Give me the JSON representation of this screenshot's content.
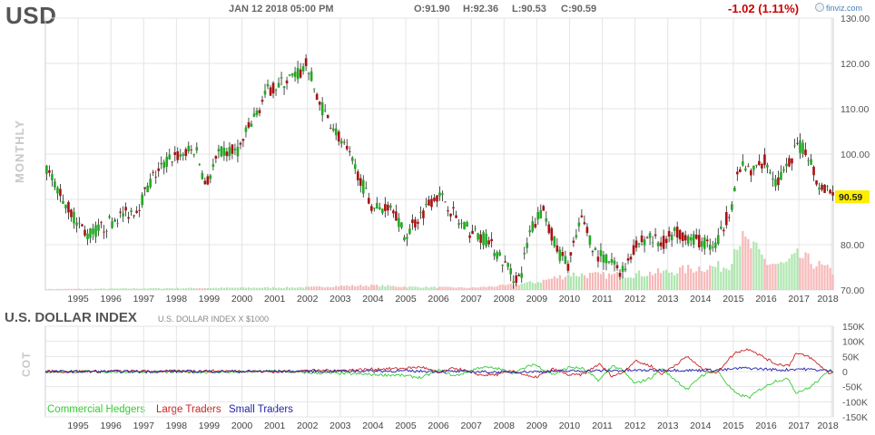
{
  "header": {
    "ticker": "USD",
    "datestamp": "JAN 12 2018 05:00 PM",
    "open": "O:91.90",
    "high": "H:92.36",
    "low": "L:90.53",
    "close": "C:90.59",
    "change": "-1.02 (1.11%)",
    "brand": "finviz.com",
    "period": "MONTHLY"
  },
  "cot_panel": {
    "title": "U.S. DOLLAR INDEX",
    "subtitle": "U.S. DOLLAR INDEX X $1000",
    "side_label": "COT",
    "legend": [
      {
        "label": "Commercial Hedgers",
        "color": "#33cc33"
      },
      {
        "label": "Large Traders",
        "color": "#cc2222"
      },
      {
        "label": "Small Traders",
        "color": "#2222aa"
      }
    ]
  },
  "colors": {
    "up": "#22aa22",
    "down": "#aa1111",
    "wick": "#222222",
    "volume_up": "#aee6ae",
    "volume_down": "#f7b8b8",
    "last_price_bg": "#ffee00",
    "grid": "#e4e4e4"
  },
  "chart_data": [
    {
      "type": "candlestick",
      "period": "monthly",
      "ylim": [
        70,
        130
      ],
      "yticks": [
        "130.00",
        "120.00",
        "110.00",
        "100.00",
        "90.00",
        "80.00",
        "70.00"
      ],
      "xticks": [
        "1995",
        "1996",
        "1997",
        "1998",
        "1999",
        "2000",
        "2001",
        "2002",
        "2003",
        "2004",
        "2005",
        "2006",
        "2007",
        "2008",
        "2009",
        "2010",
        "2011",
        "2012",
        "2013",
        "2014",
        "2015",
        "2016",
        "2017",
        "2018"
      ],
      "last_price": "90.59",
      "x_start_year": 1994.0,
      "x_end_year": 2018.05,
      "price_path": [
        [
          1994.0,
          97
        ],
        [
          1994.4,
          92
        ],
        [
          1994.8,
          87
        ],
        [
          1995.3,
          82
        ],
        [
          1995.8,
          84
        ],
        [
          1996.2,
          86
        ],
        [
          1996.8,
          88
        ],
        [
          1997.3,
          95
        ],
        [
          1997.8,
          99
        ],
        [
          1998.2,
          100
        ],
        [
          1998.6,
          101
        ],
        [
          1998.9,
          93
        ],
        [
          1999.3,
          100
        ],
        [
          1999.9,
          101
        ],
        [
          2000.3,
          107
        ],
        [
          2000.8,
          114
        ],
        [
          2001.3,
          116
        ],
        [
          2001.8,
          118
        ],
        [
          2002.0,
          120
        ],
        [
          2002.3,
          112
        ],
        [
          2002.8,
          106
        ],
        [
          2003.3,
          99
        ],
        [
          2003.6,
          95
        ],
        [
          2003.9,
          89
        ],
        [
          2004.2,
          88
        ],
        [
          2004.6,
          89
        ],
        [
          2004.95,
          82
        ],
        [
          2005.3,
          85
        ],
        [
          2005.9,
          91
        ],
        [
          2006.2,
          90
        ],
        [
          2006.6,
          85
        ],
        [
          2006.95,
          83
        ],
        [
          2007.5,
          81
        ],
        [
          2007.9,
          77
        ],
        [
          2008.3,
          73
        ],
        [
          2008.5,
          72.5
        ],
        [
          2008.8,
          83
        ],
        [
          2009.2,
          88
        ],
        [
          2009.6,
          79
        ],
        [
          2009.95,
          75.5
        ],
        [
          2010.4,
          86
        ],
        [
          2010.8,
          78
        ],
        [
          2011.3,
          76
        ],
        [
          2011.6,
          74
        ],
        [
          2011.95,
          79
        ],
        [
          2012.4,
          82
        ],
        [
          2012.8,
          80
        ],
        [
          2013.3,
          83
        ],
        [
          2013.8,
          81
        ],
        [
          2014.3,
          80
        ],
        [
          2014.5,
          80
        ],
        [
          2014.95,
          89
        ],
        [
          2015.2,
          97
        ],
        [
          2015.6,
          96
        ],
        [
          2015.95,
          99
        ],
        [
          2016.3,
          94
        ],
        [
          2016.6,
          96
        ],
        [
          2016.95,
          102
        ],
        [
          2017.3,
          100
        ],
        [
          2017.6,
          93
        ],
        [
          2017.95,
          92.5
        ],
        [
          2018.05,
          90.59
        ]
      ],
      "volume_path": [
        [
          1994.0,
          0.2
        ],
        [
          2002.0,
          0.6
        ],
        [
          2003.0,
          0.9
        ],
        [
          2004.0,
          1.0
        ],
        [
          2005.0,
          0.7
        ],
        [
          2007.0,
          0.5
        ],
        [
          2008.0,
          1.0
        ],
        [
          2009.0,
          1.8
        ],
        [
          2010.0,
          3.5
        ],
        [
          2011.0,
          3.2
        ],
        [
          2012.0,
          3.5
        ],
        [
          2013.0,
          4.0
        ],
        [
          2014.0,
          5.0
        ],
        [
          2014.8,
          5.2
        ],
        [
          2015.1,
          11.5
        ],
        [
          2015.6,
          9.0
        ],
        [
          2016.0,
          6.0
        ],
        [
          2016.5,
          5.5
        ],
        [
          2016.95,
          7.5
        ],
        [
          2017.4,
          6.0
        ],
        [
          2018.0,
          4.0
        ]
      ]
    },
    {
      "type": "line",
      "title": "U.S. DOLLAR INDEX",
      "ylim": [
        -150000,
        150000
      ],
      "yticks": [
        "150K",
        "100K",
        "50K",
        "0",
        "-50K",
        "-100K",
        "-150K"
      ],
      "xticks": [
        "1995",
        "1996",
        "1997",
        "1998",
        "1999",
        "2000",
        "2001",
        "2002",
        "2003",
        "2004",
        "2005",
        "2006",
        "2007",
        "2008",
        "2009",
        "2010",
        "2011",
        "2012",
        "2013",
        "2014",
        "2015",
        "2016",
        "2017",
        "2018"
      ],
      "series": [
        {
          "name": "Commercial Hedgers",
          "color": "#33cc33",
          "points": [
            [
              1994.0,
              0
            ],
            [
              2000.0,
              -2000
            ],
            [
              2001.0,
              2000
            ],
            [
              2002.0,
              -4000
            ],
            [
              2003.0,
              -6000
            ],
            [
              2004.0,
              -10000
            ],
            [
              2004.8,
              -12000
            ],
            [
              2005.5,
              -20000
            ],
            [
              2006.0,
              5000
            ],
            [
              2006.5,
              -15000
            ],
            [
              2007.3,
              15000
            ],
            [
              2007.8,
              10000
            ],
            [
              2008.3,
              -5000
            ],
            [
              2008.9,
              25000
            ],
            [
              2009.5,
              -10000
            ],
            [
              2010.0,
              15000
            ],
            [
              2010.4,
              10000
            ],
            [
              2010.9,
              -30000
            ],
            [
              2011.3,
              20000
            ],
            [
              2011.6,
              5000
            ],
            [
              2012.0,
              -40000
            ],
            [
              2012.5,
              -20000
            ],
            [
              2012.8,
              10000
            ],
            [
              2013.2,
              -25000
            ],
            [
              2013.6,
              -60000
            ],
            [
              2014.0,
              -15000
            ],
            [
              2014.5,
              5000
            ],
            [
              2014.8,
              -40000
            ],
            [
              2015.1,
              -75000
            ],
            [
              2015.5,
              -85000
            ],
            [
              2015.8,
              -60000
            ],
            [
              2016.3,
              -30000
            ],
            [
              2016.7,
              -25000
            ],
            [
              2016.9,
              -70000
            ],
            [
              2017.3,
              -55000
            ],
            [
              2017.7,
              -20000
            ],
            [
              2017.9,
              5000
            ],
            [
              2018.05,
              3000
            ]
          ]
        },
        {
          "name": "Large Traders",
          "color": "#cc2222",
          "points": [
            [
              1994.0,
              0
            ],
            [
              2000.0,
              2000
            ],
            [
              2001.0,
              -1000
            ],
            [
              2002.0,
              3000
            ],
            [
              2003.0,
              4000
            ],
            [
              2004.0,
              8000
            ],
            [
              2004.8,
              10000
            ],
            [
              2005.5,
              15000
            ],
            [
              2006.0,
              -5000
            ],
            [
              2006.5,
              12000
            ],
            [
              2007.3,
              -12000
            ],
            [
              2007.8,
              -10000
            ],
            [
              2008.3,
              3000
            ],
            [
              2008.9,
              -22000
            ],
            [
              2009.5,
              8000
            ],
            [
              2010.0,
              -12000
            ],
            [
              2010.4,
              -10000
            ],
            [
              2010.9,
              25000
            ],
            [
              2011.3,
              -15000
            ],
            [
              2011.6,
              -5000
            ],
            [
              2012.0,
              35000
            ],
            [
              2012.5,
              18000
            ],
            [
              2012.8,
              -8000
            ],
            [
              2013.2,
              20000
            ],
            [
              2013.6,
              50000
            ],
            [
              2014.0,
              12000
            ],
            [
              2014.5,
              -5000
            ],
            [
              2014.8,
              35000
            ],
            [
              2015.1,
              65000
            ],
            [
              2015.5,
              75000
            ],
            [
              2015.8,
              55000
            ],
            [
              2016.3,
              25000
            ],
            [
              2016.7,
              20000
            ],
            [
              2016.9,
              60000
            ],
            [
              2017.3,
              50000
            ],
            [
              2017.7,
              15000
            ],
            [
              2017.9,
              -5000
            ],
            [
              2018.05,
              -3000
            ]
          ]
        },
        {
          "name": "Small Traders",
          "color": "#2222aa",
          "points": [
            [
              1994.0,
              0
            ],
            [
              2002.0,
              1000
            ],
            [
              2004.0,
              2000
            ],
            [
              2006.0,
              1000
            ],
            [
              2008.0,
              -2000
            ],
            [
              2009.0,
              0
            ],
            [
              2010.0,
              2000
            ],
            [
              2011.0,
              3000
            ],
            [
              2012.0,
              4000
            ],
            [
              2013.0,
              5000
            ],
            [
              2014.0,
              4000
            ],
            [
              2014.8,
              6000
            ],
            [
              2015.3,
              12000
            ],
            [
              2015.8,
              9000
            ],
            [
              2016.5,
              5000
            ],
            [
              2017.0,
              9000
            ],
            [
              2017.5,
              6000
            ],
            [
              2018.05,
              2000
            ]
          ]
        }
      ]
    }
  ]
}
